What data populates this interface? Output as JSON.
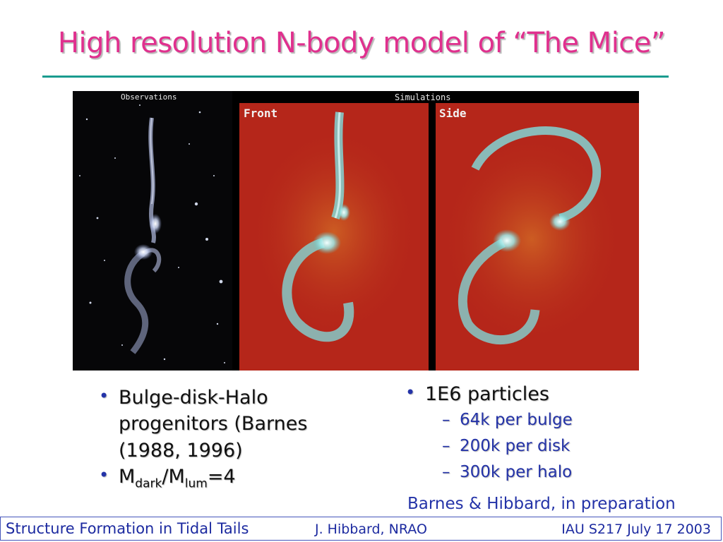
{
  "title": "High resolution N-body model of “The Mice”",
  "figure": {
    "label_observations": "Observations",
    "label_simulations": "Simulations",
    "label_front": "Front",
    "label_side": "Side"
  },
  "left_bullets": {
    "item1": "Bulge-disk-Halo progenitors (Barnes (1988, 1996)",
    "item2_m": "M",
    "item2_sub1": "dark",
    "item2_slash": "/M",
    "item2_sub2": "lum",
    "item2_rest": "=4"
  },
  "right_bullets": {
    "item1": "1E6 particles",
    "sub_items": [
      "64k per bulge",
      "200k per disk",
      "300k per halo"
    ]
  },
  "credit": "Barnes & Hibbard, in preparation",
  "footer": {
    "left": "Structure Formation in Tidal Tails",
    "middle": "J. Hibbard, NRAO",
    "right": "IAU S217  July 17 2003"
  },
  "colors": {
    "title": "#e0308e",
    "rule": "#1a9c8f",
    "bullet_blue": "#2433a8",
    "sim_background": "#b5261a",
    "tail_cyan": "#7fe0e0"
  }
}
